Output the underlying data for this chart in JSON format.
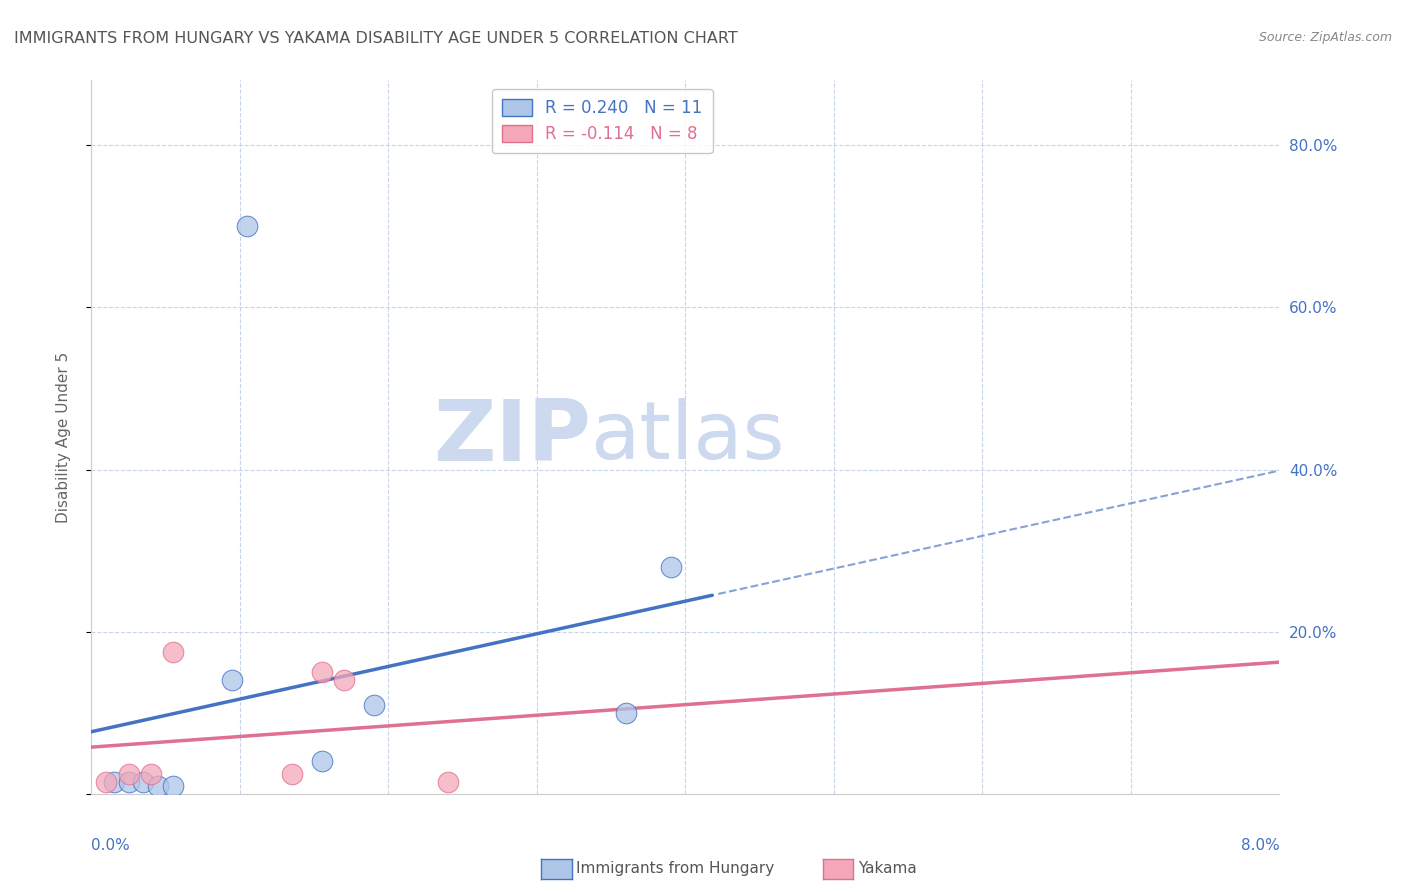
{
  "title": "IMMIGRANTS FROM HUNGARY VS YAKAMA DISABILITY AGE UNDER 5 CORRELATION CHART",
  "source": "Source: ZipAtlas.com",
  "ylabel": "Disability Age Under 5",
  "xlim": [
    0.0,
    8.0
  ],
  "ylim": [
    0.0,
    88.0
  ],
  "hungary_r": 0.24,
  "hungary_n": 11,
  "yakama_r": -0.114,
  "yakama_n": 8,
  "hungary_color": "#aec6e8",
  "hungary_line_color": "#4472c4",
  "yakama_color": "#f4a7b9",
  "yakama_line_color": "#e07090",
  "hungary_scatter_x": [
    0.15,
    0.25,
    0.35,
    0.45,
    0.55,
    0.95,
    1.05,
    1.55,
    1.9,
    3.6,
    3.9
  ],
  "hungary_scatter_y": [
    1.5,
    1.5,
    1.5,
    1.0,
    1.0,
    14.0,
    70.0,
    4.0,
    11.0,
    10.0,
    28.0
  ],
  "yakama_scatter_x": [
    0.1,
    0.25,
    0.4,
    0.55,
    1.35,
    1.55,
    1.7,
    2.4
  ],
  "yakama_scatter_y": [
    1.5,
    2.5,
    2.5,
    17.5,
    2.5,
    15.0,
    14.0,
    1.5
  ],
  "background_color": "#ffffff",
  "grid_color": "#c8d4e8",
  "title_color": "#555555",
  "right_axis_color": "#4472c4",
  "watermark_zip": "ZIP",
  "watermark_atlas": "atlas",
  "watermark_color": "#ccd9ee",
  "legend_hungary_label": "Immigrants from Hungary",
  "legend_yakama_label": "Yakama",
  "right_yticks": [
    20.0,
    40.0,
    60.0,
    80.0
  ],
  "right_ytick_labels": [
    "20.0%",
    "40.0%",
    "60.0%",
    "80.0%"
  ]
}
